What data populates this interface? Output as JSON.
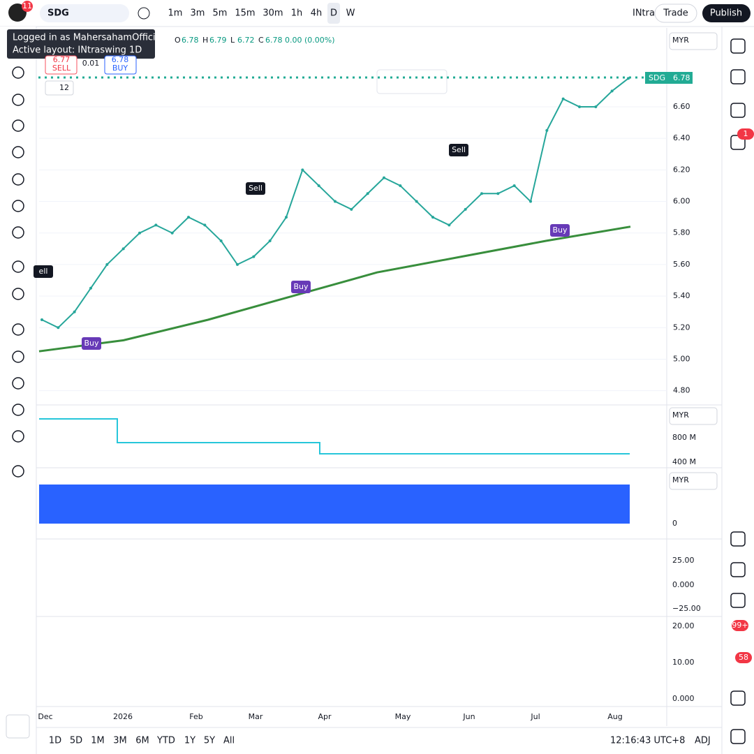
{
  "toolbar": {
    "badge": "11",
    "symbol": "SDG",
    "intervals": [
      "1m",
      "3m",
      "5m",
      "15m",
      "30m",
      "1h",
      "4h",
      "D",
      "W"
    ],
    "layout": "INtra",
    "trade": "Trade",
    "publish": "Publish"
  },
  "tooltip": [
    "Logged in as MahersahamOfficial",
    "Active layout: INtraswing 1D"
  ],
  "legend": {
    "items": [
      {
        "label": "O",
        "value": "6.78"
      },
      {
        "label": "H",
        "value": "6.79"
      },
      {
        "label": "L",
        "value": "6.72"
      },
      {
        "label": "C",
        "value": "6.78"
      }
    ],
    "change": "0.00 (0.00%)"
  },
  "order": {
    "sell_price": "6.77",
    "sell": "SELL",
    "spread": "0.01",
    "buy_price": "6.78",
    "buy": "BUY"
  },
  "indicator_count": "12",
  "currency": "MYR",
  "last": {
    "symbol": "SDG",
    "price": "6.78"
  },
  "signals": [
    "ell",
    "Buy",
    "Sell",
    "Buy",
    "Sell",
    "Buy"
  ],
  "chart": {
    "ylim": [
      4.71,
      7.1
    ],
    "yticks": [
      {
        "value": 6.6,
        "label": "6.60"
      },
      {
        "value": 6.4,
        "label": "6.40"
      },
      {
        "value": 6.2,
        "label": "6.20"
      },
      {
        "value": 6,
        "label": "6.00"
      },
      {
        "value": 5.8,
        "label": "5.80"
      },
      {
        "value": 5.6,
        "label": "5.60"
      },
      {
        "value": 5.4,
        "label": "5.40"
      },
      {
        "value": 5.2,
        "label": "5.20"
      },
      {
        "value": 5,
        "label": "5.00"
      },
      {
        "value": 4.8,
        "label": "4.80"
      }
    ],
    "close": [
      5.25,
      5.2,
      5.3,
      5.45,
      5.6,
      5.7,
      5.8,
      5.85,
      5.8,
      5.9,
      5.85,
      5.75,
      5.6,
      5.65,
      5.75,
      5.9,
      6.2,
      6.1,
      6.0,
      5.95,
      6.05,
      6.15,
      6.1,
      6.0,
      5.9,
      5.85,
      5.95,
      6.05,
      6.05,
      6.1,
      6.0,
      6.45,
      6.65,
      6.6,
      6.6,
      6.7,
      6.78
    ],
    "ma": [
      5.05,
      5.12,
      5.25,
      5.4,
      5.55,
      5.65,
      5.75,
      5.84
    ],
    "x_labels": [
      "Dec",
      "2026",
      "Feb",
      "Mar",
      "Apr",
      "May",
      "Jun",
      "Jul",
      "Aug"
    ]
  },
  "panes": {
    "volume": [
      "800 M",
      "400 M"
    ],
    "flow": [
      "0"
    ],
    "osc": [
      "25.00",
      "0.000",
      "−25.00"
    ],
    "strength": [
      "20.00",
      "10.00",
      "0.000"
    ]
  },
  "right_badges": [
    "1",
    "99+",
    "58"
  ],
  "bottom": {
    "ranges": [
      "1D",
      "5D",
      "1M",
      "3M",
      "6M",
      "YTD",
      "1Y",
      "5Y",
      "All"
    ],
    "time": "12:16:43 UTC+8",
    "adj": "ADJ"
  }
}
